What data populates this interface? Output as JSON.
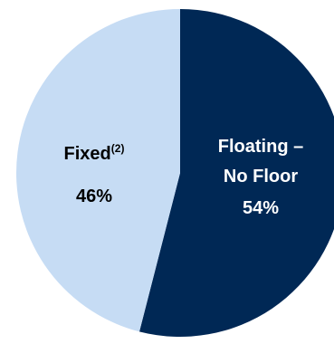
{
  "chart_data": {
    "type": "pie",
    "slices": [
      {
        "label_lines": [
          "Floating –",
          "No Floor"
        ],
        "value": 54,
        "value_label": "54%",
        "color": "#002855",
        "text_color": "#ffffff"
      },
      {
        "label": "Fixed",
        "label_superscript": "(2)",
        "value": 46,
        "value_label": "46%",
        "color": "#c6dcf4",
        "text_color": "#000000"
      }
    ],
    "start": "top, clockwise",
    "legend": "none"
  }
}
